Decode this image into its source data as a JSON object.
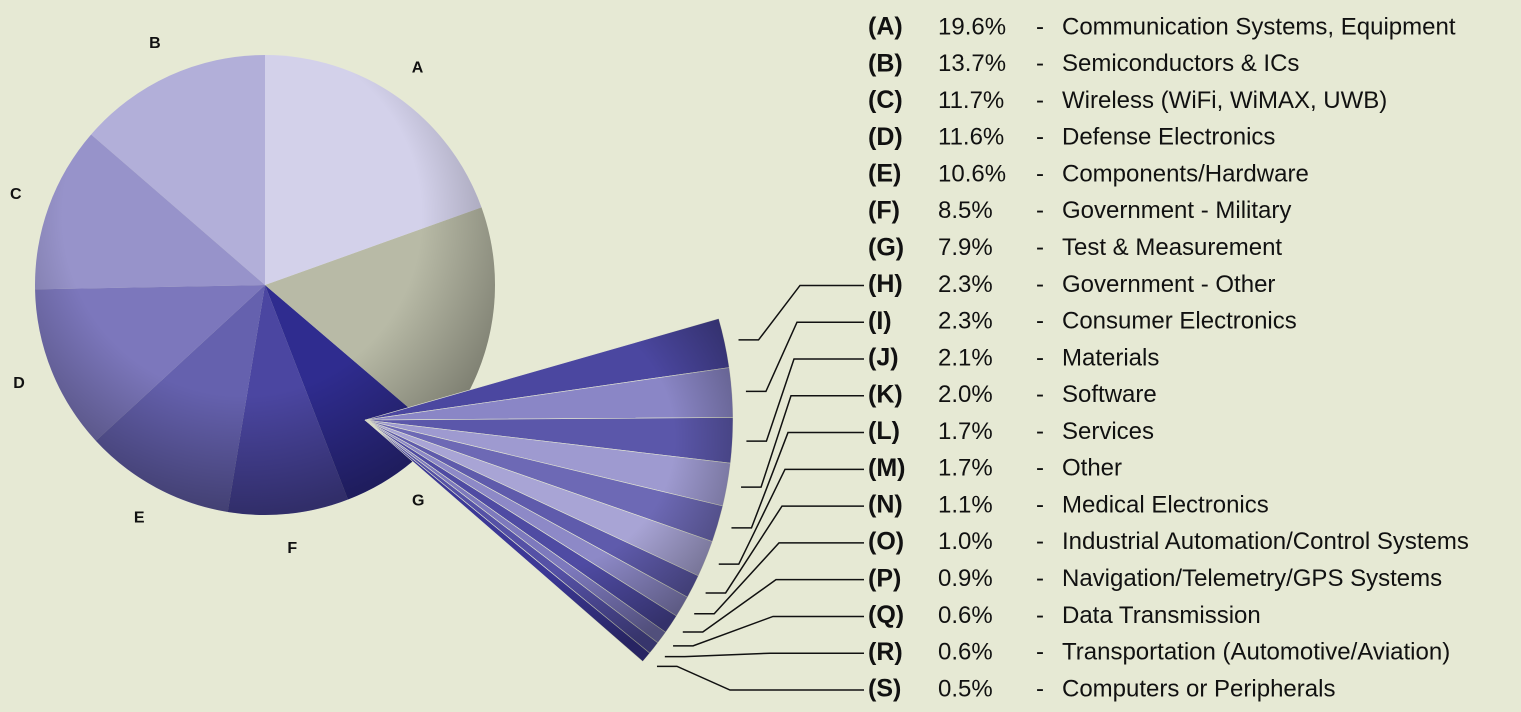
{
  "chart_data": {
    "type": "pie-of-pie",
    "categories": [
      "A",
      "B",
      "C",
      "D",
      "E",
      "F",
      "G",
      "H",
      "I",
      "J",
      "K",
      "L",
      "M",
      "N",
      "O",
      "P",
      "Q",
      "R",
      "S"
    ],
    "legend_keys": [
      "(A)",
      "(B)",
      "(C)",
      "(D)",
      "(E)",
      "(F)",
      "(G)",
      "(H)",
      "(I)",
      "(J)",
      "(K)",
      "(L)",
      "(M)",
      "(N)",
      "(O)",
      "(P)",
      "(Q)",
      "(R)",
      "(S)"
    ],
    "separator": "-",
    "descriptions": [
      "Communication Systems, Equipment",
      "Semiconductors & ICs",
      "Wireless (WiFi, WiMAX, UWB)",
      "Defense Electronics",
      "Components/Hardware",
      "Government - Military",
      "Test & Measurement",
      "Government - Other",
      "Consumer Electronics",
      "Materials",
      "Software",
      "Services",
      "Other",
      "Medical Electronics",
      "Industrial Automation/Control Systems",
      "Navigation/Telemetry/GPS Systems",
      "Data Transmission",
      "Transportation (Automotive/Aviation)",
      "Computers or Peripherals"
    ],
    "values": [
      19.6,
      13.7,
      11.7,
      11.6,
      10.6,
      8.5,
      7.9,
      2.3,
      2.3,
      2.1,
      2.0,
      1.7,
      1.7,
      1.1,
      1.0,
      0.9,
      0.6,
      0.6,
      0.5
    ],
    "value_labels": [
      "19.6%",
      "13.7%",
      "11.7%",
      "11.6%",
      "10.6%",
      "8.5%",
      "7.9%",
      "2.3%",
      "2.3%",
      "2.1%",
      "2.0%",
      "1.7%",
      "1.7%",
      "1.1%",
      "1.0%",
      "0.9%",
      "0.6%",
      "0.6%",
      "0.5%"
    ],
    "main_count": 7,
    "colors": [
      "#d3d1ea",
      "#b2afd9",
      "#9793ca",
      "#7c77bc",
      "#6561ae",
      "#4b46a1",
      "#2f2c8f",
      "#4b47a0",
      "#8a86c6",
      "#5b57aa",
      "#9e9ad0",
      "#6d69b5",
      "#a8a4d5",
      "#5f5bac",
      "#8d89c7",
      "#4f4ba3",
      "#7d79bd",
      "#5551a6",
      "#3c3896"
    ],
    "other_color": "#b8baa6"
  }
}
